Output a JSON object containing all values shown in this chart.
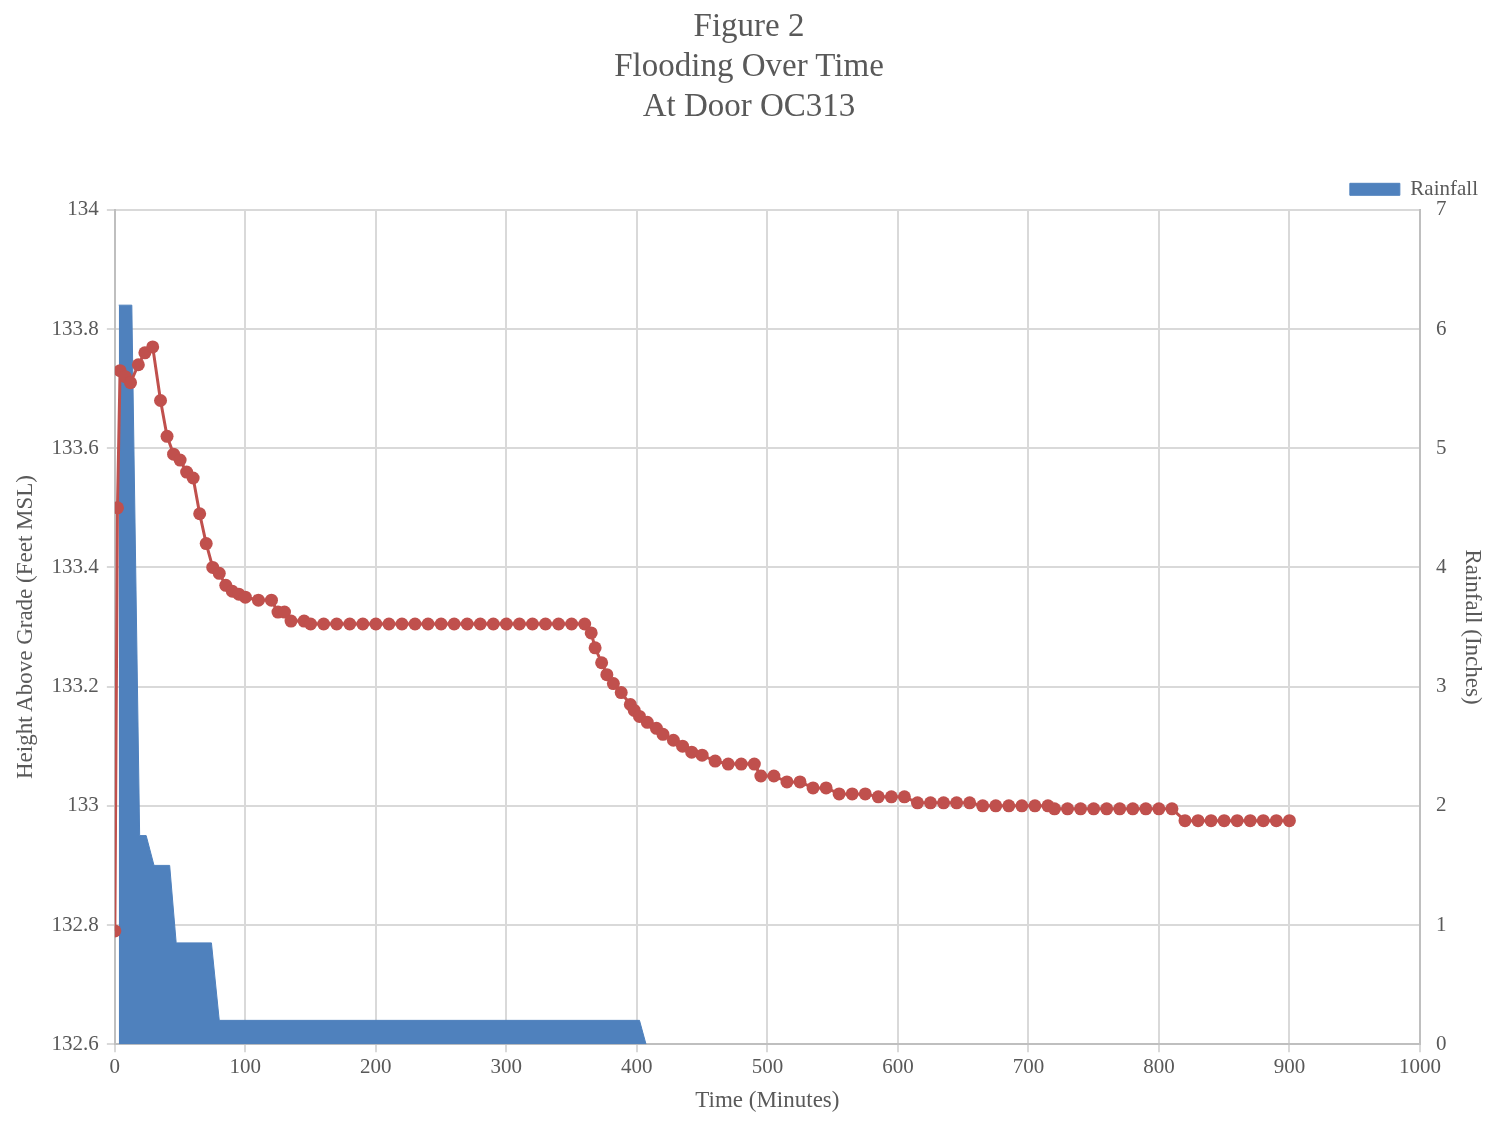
{
  "chart_data": {
    "type": "line",
    "title": "Figure 2\nFlooding Over Time\nAt Door OC313",
    "xlabel": "Time (Minutes)",
    "ylabel": "Height Above Grade (Feet MSL)",
    "y2label": "Rainfall (Inches)",
    "xlim": [
      0,
      1000
    ],
    "xticks": [
      0,
      100,
      200,
      300,
      400,
      500,
      600,
      700,
      800,
      900,
      1000
    ],
    "ylim": [
      132.6,
      134
    ],
    "yticks": [
      132.6,
      132.8,
      133,
      133.2,
      133.4,
      133.6,
      133.8,
      134
    ],
    "y2lim": [
      0,
      7
    ],
    "y2ticks": [
      0,
      1,
      2,
      3,
      4,
      5,
      6,
      7
    ],
    "grid": true,
    "legend": "top right",
    "series": [
      {
        "name": "Rainfall",
        "type": "area",
        "axis": "y2",
        "color": "#4f81bd",
        "marker": "none",
        "x": [
          3,
          13,
          19,
          24,
          30,
          42,
          47,
          74,
          80,
          402,
          407
        ],
        "values": [
          6.2,
          6.2,
          1.75,
          1.75,
          1.5,
          1.5,
          0.85,
          0.85,
          0.2,
          0.2,
          0
        ]
      },
      {
        "type": "line",
        "color": "#c0504d",
        "marker": "circle",
        "x": [
          0,
          2,
          4,
          8,
          12,
          18,
          23,
          29,
          35,
          40,
          45,
          50,
          55,
          60,
          65,
          70,
          75,
          80,
          85,
          90,
          95,
          100,
          110,
          120,
          125,
          130,
          135,
          145,
          150,
          160,
          170,
          180,
          190,
          200,
          210,
          220,
          230,
          240,
          250,
          260,
          270,
          280,
          290,
          300,
          310,
          320,
          330,
          340,
          350,
          360,
          365,
          368,
          373,
          377,
          382,
          388,
          395,
          398,
          402,
          408,
          415,
          420,
          428,
          435,
          442,
          450,
          460,
          470,
          480,
          490,
          495,
          505,
          515,
          525,
          535,
          545,
          555,
          565,
          575,
          585,
          595,
          605,
          615,
          625,
          635,
          645,
          655,
          665,
          675,
          685,
          695,
          705,
          715,
          720,
          730,
          740,
          750,
          760,
          770,
          780,
          790,
          800,
          810,
          820,
          830,
          840,
          850,
          860,
          870,
          880,
          890,
          900
        ],
        "values": [
          132.79,
          133.5,
          133.73,
          133.72,
          133.71,
          133.74,
          133.76,
          133.77,
          133.68,
          133.62,
          133.59,
          133.58,
          133.56,
          133.55,
          133.49,
          133.44,
          133.4,
          133.39,
          133.37,
          133.36,
          133.355,
          133.35,
          133.345,
          133.345,
          133.325,
          133.325,
          133.31,
          133.31,
          133.305,
          133.305,
          133.305,
          133.305,
          133.305,
          133.305,
          133.305,
          133.305,
          133.305,
          133.305,
          133.305,
          133.305,
          133.305,
          133.305,
          133.305,
          133.305,
          133.305,
          133.305,
          133.305,
          133.305,
          133.305,
          133.305,
          133.29,
          133.265,
          133.24,
          133.22,
          133.205,
          133.19,
          133.17,
          133.16,
          133.15,
          133.14,
          133.13,
          133.12,
          133.11,
          133.1,
          133.09,
          133.085,
          133.075,
          133.07,
          133.07,
          133.07,
          133.05,
          133.05,
          133.04,
          133.04,
          133.03,
          133.03,
          133.02,
          133.02,
          133.02,
          133.015,
          133.015,
          133.015,
          133.005,
          133.005,
          133.005,
          133.005,
          133.005,
          133,
          133,
          133,
          133,
          133,
          133,
          132.995,
          132.995,
          132.995,
          132.995,
          132.995,
          132.995,
          132.995,
          132.995,
          132.995,
          132.995,
          132.975,
          132.975,
          132.975,
          132.975,
          132.975,
          132.975,
          132.975,
          132.975,
          132.975
        ]
      }
    ]
  }
}
